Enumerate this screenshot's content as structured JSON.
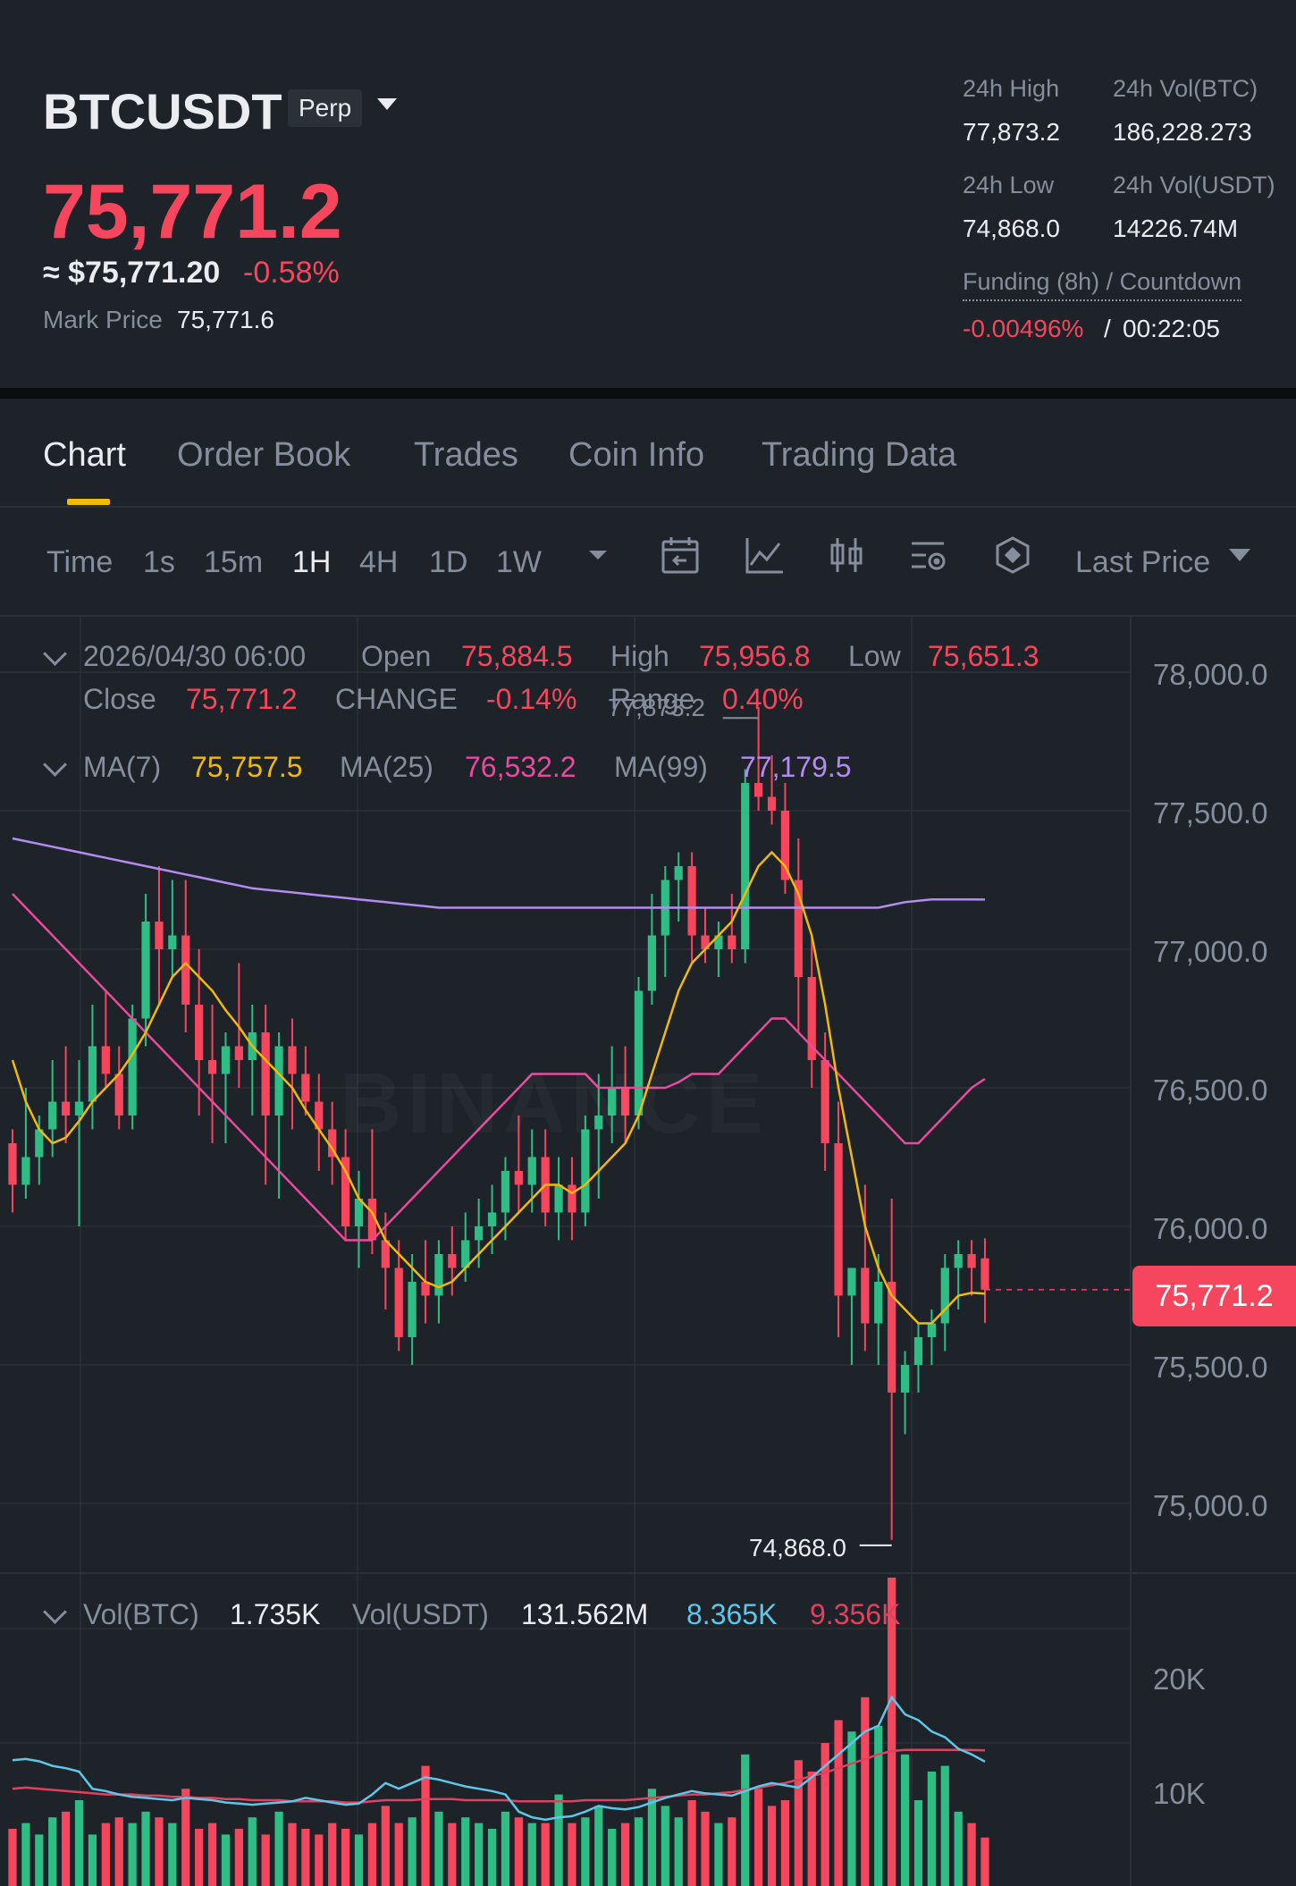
{
  "header": {
    "symbol": "BTCUSDT",
    "contract_badge": "Perp",
    "last_price": "75,771.2",
    "usd_price": "≈ $75,771.20",
    "change_pct": "-0.58%",
    "mark_price_label": "Mark Price",
    "mark_price": "75,771.6",
    "stats": {
      "high_label": "24h High",
      "high": "77,873.2",
      "vol_btc_label": "24h Vol(BTC)",
      "vol_btc": "186,228.273",
      "low_label": "24h Low",
      "low": "74,868.0",
      "vol_usdt_label": "24h Vol(USDT)",
      "vol_usdt": "14226.74M",
      "funding_label": "Funding (8h) / Countdown",
      "funding_rate": "-0.00496%",
      "funding_sep": "/",
      "countdown": "00:22:05"
    }
  },
  "tabs": [
    "Chart",
    "Order Book",
    "Trades",
    "Coin Info",
    "Trading Data"
  ],
  "active_tab": "Chart",
  "toolbar": {
    "timeframes": [
      "Time",
      "1s",
      "15m",
      "1H",
      "4H",
      "1D",
      "1W"
    ],
    "active_timeframe": "1H",
    "price_type": "Last Price",
    "icons": [
      "chevron-down-icon",
      "calendar-icon",
      "indicator-icon",
      "candle-style-icon",
      "settings-icon",
      "drawing-icon"
    ]
  },
  "ohlc": {
    "datetime": "2026/04/30 06:00",
    "open_label": "Open",
    "open": "75,884.5",
    "high_label": "High",
    "high": "75,956.8",
    "low_label": "Low",
    "low": "75,651.3",
    "close_label": "Close",
    "close": "75,771.2",
    "change_label": "CHANGE",
    "change": "-0.14%",
    "range_label": "Range",
    "range": "0.40%"
  },
  "ma": {
    "ma7_label": "MA(7)",
    "ma7": "75,757.5",
    "ma25_label": "MA(25)",
    "ma25": "76,532.2",
    "ma99_label": "MA(99)",
    "ma99": "77,179.5",
    "ma7_color": "#f0b90b",
    "ma25_color": "#e84aa0",
    "ma99_color": "#b48cf0"
  },
  "annotations": {
    "max_price": "77,873.2",
    "min_price": "74,868.0",
    "current_price_tag": "75,771.2"
  },
  "volume_legend": {
    "vol_btc_label": "Vol(BTC)",
    "vol_btc": "1.735K",
    "vol_usdt_label": "Vol(USDT)",
    "vol_usdt": "131.562M",
    "ma1": "8.365K",
    "ma2": "9.356K",
    "ma1_color": "#5ec6e8",
    "ma2_color": "#e0415f"
  },
  "watermark": "BINANCE",
  "chart_data": {
    "type": "candlestick",
    "y_axis_ticks": [
      "78,000.0",
      "77,500.0",
      "77,000.0",
      "76,500.0",
      "76,000.0",
      "75,500.0",
      "75,000.0"
    ],
    "ylim": [
      74800,
      78200
    ],
    "volume_axis_ticks": [
      "20K",
      "10K"
    ],
    "volume_ylim": [
      0,
      26000
    ],
    "colors": {
      "up": "#2ebd85",
      "down": "#f6465d"
    },
    "candles": [
      {
        "o": 76300,
        "h": 76350,
        "l": 76050,
        "c": 76150
      },
      {
        "o": 76150,
        "h": 76500,
        "l": 76100,
        "c": 76250
      },
      {
        "o": 76250,
        "h": 76400,
        "l": 76150,
        "c": 76350
      },
      {
        "o": 76350,
        "h": 76600,
        "l": 76250,
        "c": 76450
      },
      {
        "o": 76450,
        "h": 76650,
        "l": 76300,
        "c": 76400
      },
      {
        "o": 76400,
        "h": 76600,
        "l": 76000,
        "c": 76450
      },
      {
        "o": 76450,
        "h": 76800,
        "l": 76350,
        "c": 76650
      },
      {
        "o": 76650,
        "h": 76850,
        "l": 76500,
        "c": 76550
      },
      {
        "o": 76550,
        "h": 76650,
        "l": 76350,
        "c": 76400
      },
      {
        "o": 76400,
        "h": 76800,
        "l": 76350,
        "c": 76750
      },
      {
        "o": 76750,
        "h": 77200,
        "l": 76650,
        "c": 77100
      },
      {
        "o": 77100,
        "h": 77300,
        "l": 76800,
        "c": 77000
      },
      {
        "o": 77000,
        "h": 77250,
        "l": 76900,
        "c": 77050
      },
      {
        "o": 77050,
        "h": 77250,
        "l": 76700,
        "c": 76800
      },
      {
        "o": 76800,
        "h": 77000,
        "l": 76400,
        "c": 76600
      },
      {
        "o": 76600,
        "h": 76800,
        "l": 76300,
        "c": 76550
      },
      {
        "o": 76550,
        "h": 76700,
        "l": 76300,
        "c": 76650
      },
      {
        "o": 76650,
        "h": 76950,
        "l": 76500,
        "c": 76600
      },
      {
        "o": 76600,
        "h": 76800,
        "l": 76400,
        "c": 76700
      },
      {
        "o": 76700,
        "h": 76800,
        "l": 76150,
        "c": 76400
      },
      {
        "o": 76400,
        "h": 76700,
        "l": 76100,
        "c": 76650
      },
      {
        "o": 76650,
        "h": 76750,
        "l": 76350,
        "c": 76550
      },
      {
        "o": 76550,
        "h": 76650,
        "l": 76400,
        "c": 76450
      },
      {
        "o": 76450,
        "h": 76550,
        "l": 76200,
        "c": 76350
      },
      {
        "o": 76350,
        "h": 76450,
        "l": 76150,
        "c": 76250
      },
      {
        "o": 76250,
        "h": 76350,
        "l": 75950,
        "c": 76000
      },
      {
        "o": 76000,
        "h": 76200,
        "l": 75850,
        "c": 76100
      },
      {
        "o": 76100,
        "h": 76350,
        "l": 75900,
        "c": 75950
      },
      {
        "o": 75950,
        "h": 76050,
        "l": 75700,
        "c": 75850
      },
      {
        "o": 75850,
        "h": 75950,
        "l": 75550,
        "c": 75600
      },
      {
        "o": 75600,
        "h": 75900,
        "l": 75500,
        "c": 75800
      },
      {
        "o": 75800,
        "h": 75950,
        "l": 75650,
        "c": 75750
      },
      {
        "o": 75750,
        "h": 75950,
        "l": 75650,
        "c": 75900
      },
      {
        "o": 75900,
        "h": 76000,
        "l": 75750,
        "c": 75850
      },
      {
        "o": 75850,
        "h": 76050,
        "l": 75800,
        "c": 75950
      },
      {
        "o": 75950,
        "h": 76100,
        "l": 75850,
        "c": 76000
      },
      {
        "o": 76000,
        "h": 76150,
        "l": 75900,
        "c": 76050
      },
      {
        "o": 76050,
        "h": 76250,
        "l": 75950,
        "c": 76200
      },
      {
        "o": 76200,
        "h": 76400,
        "l": 76050,
        "c": 76150
      },
      {
        "o": 76150,
        "h": 76350,
        "l": 76050,
        "c": 76250
      },
      {
        "o": 76250,
        "h": 76350,
        "l": 76000,
        "c": 76050
      },
      {
        "o": 76050,
        "h": 76250,
        "l": 75950,
        "c": 76150
      },
      {
        "o": 76150,
        "h": 76250,
        "l": 75950,
        "c": 76050
      },
      {
        "o": 76050,
        "h": 76400,
        "l": 76000,
        "c": 76350
      },
      {
        "o": 76350,
        "h": 76550,
        "l": 76100,
        "c": 76400
      },
      {
        "o": 76400,
        "h": 76650,
        "l": 76300,
        "c": 76500
      },
      {
        "o": 76500,
        "h": 76650,
        "l": 76300,
        "c": 76400
      },
      {
        "o": 76400,
        "h": 76900,
        "l": 76350,
        "c": 76850
      },
      {
        "o": 76850,
        "h": 77200,
        "l": 76800,
        "c": 77050
      },
      {
        "o": 77050,
        "h": 77300,
        "l": 76900,
        "c": 77250
      },
      {
        "o": 77250,
        "h": 77350,
        "l": 77100,
        "c": 77300
      },
      {
        "o": 77300,
        "h": 77350,
        "l": 76950,
        "c": 77050
      },
      {
        "o": 77050,
        "h": 77150,
        "l": 76950,
        "c": 77000
      },
      {
        "o": 77000,
        "h": 77100,
        "l": 76900,
        "c": 77050
      },
      {
        "o": 77050,
        "h": 77200,
        "l": 76950,
        "c": 77000
      },
      {
        "o": 77000,
        "h": 77650,
        "l": 76950,
        "c": 77600
      },
      {
        "o": 77600,
        "h": 77873.2,
        "l": 77500,
        "c": 77550
      },
      {
        "o": 77550,
        "h": 77700,
        "l": 77450,
        "c": 77500
      },
      {
        "o": 77500,
        "h": 77600,
        "l": 77200,
        "c": 77250
      },
      {
        "o": 77250,
        "h": 77400,
        "l": 76700,
        "c": 76900
      },
      {
        "o": 76900,
        "h": 77050,
        "l": 76500,
        "c": 76600
      },
      {
        "o": 76600,
        "h": 76700,
        "l": 76200,
        "c": 76300
      },
      {
        "o": 76300,
        "h": 76450,
        "l": 75600,
        "c": 75750
      },
      {
        "o": 75750,
        "h": 75850,
        "l": 75500,
        "c": 75850
      },
      {
        "o": 75850,
        "h": 76150,
        "l": 75550,
        "c": 75650
      },
      {
        "o": 75650,
        "h": 75900,
        "l": 75500,
        "c": 75800
      },
      {
        "o": 75800,
        "h": 76100,
        "l": 74868,
        "c": 75400
      },
      {
        "o": 75400,
        "h": 75550,
        "l": 75250,
        "c": 75500
      },
      {
        "o": 75500,
        "h": 75650,
        "l": 75400,
        "c": 75600
      },
      {
        "o": 75600,
        "h": 75700,
        "l": 75500,
        "c": 75650
      },
      {
        "o": 75650,
        "h": 75900,
        "l": 75550,
        "c": 75850
      },
      {
        "o": 75850,
        "h": 75950,
        "l": 75700,
        "c": 75900
      },
      {
        "o": 75900,
        "h": 75950,
        "l": 75750,
        "c": 75850
      },
      {
        "o": 75884.5,
        "h": 75956.8,
        "l": 75651.3,
        "c": 75771.2
      }
    ],
    "ma7": [
      76600,
      76450,
      76350,
      76300,
      76320,
      76380,
      76450,
      76500,
      76550,
      76620,
      76700,
      76800,
      76900,
      76950,
      76900,
      76850,
      76780,
      76720,
      76650,
      76600,
      76550,
      76500,
      76420,
      76350,
      76280,
      76200,
      76100,
      76050,
      75950,
      75900,
      75850,
      75800,
      75780,
      75800,
      75850,
      75900,
      75950,
      76000,
      76050,
      76100,
      76150,
      76150,
      76120,
      76150,
      76200,
      76250,
      76300,
      76400,
      76550,
      76700,
      76850,
      76950,
      77000,
      77050,
      77100,
      77200,
      77300,
      77350,
      77300,
      77200,
      77050,
      76800,
      76500,
      76250,
      76000,
      75850,
      75750,
      75700,
      75650,
      75650,
      75700,
      75750,
      75760,
      75757.5
    ],
    "ma25": [
      77200,
      77150,
      77100,
      77050,
      77000,
      76950,
      76900,
      76850,
      76800,
      76750,
      76700,
      76650,
      76600,
      76550,
      76500,
      76450,
      76400,
      76350,
      76300,
      76250,
      76200,
      76150,
      76100,
      76050,
      76000,
      75950,
      75950,
      75950,
      76000,
      76050,
      76100,
      76150,
      76200,
      76250,
      76300,
      76350,
      76400,
      76450,
      76500,
      76550,
      76550,
      76550,
      76550,
      76550,
      76500,
      76500,
      76500,
      76500,
      76500,
      76500,
      76520,
      76550,
      76550,
      76550,
      76600,
      76650,
      76700,
      76750,
      76750,
      76700,
      76650,
      76600,
      76550,
      76500,
      76450,
      76400,
      76350,
      76300,
      76300,
      76350,
      76400,
      76450,
      76500,
      76532.2
    ],
    "ma99": [
      77400,
      77390,
      77380,
      77370,
      77360,
      77350,
      77340,
      77330,
      77320,
      77310,
      77300,
      77290,
      77280,
      77270,
      77260,
      77250,
      77240,
      77230,
      77220,
      77215,
      77210,
      77205,
      77200,
      77195,
      77190,
      77185,
      77180,
      77175,
      77170,
      77165,
      77160,
      77155,
      77150,
      77150,
      77150,
      77150,
      77150,
      77150,
      77150,
      77150,
      77150,
      77150,
      77150,
      77150,
      77150,
      77150,
      77150,
      77150,
      77150,
      77150,
      77150,
      77150,
      77150,
      77150,
      77150,
      77150,
      77150,
      77150,
      77150,
      77150,
      77150,
      77150,
      77150,
      77150,
      77150,
      77150,
      77160,
      77170,
      77175,
      77180,
      77180,
      77180,
      77180,
      77179.5
    ],
    "volumes": [
      2500,
      3000,
      2000,
      3500,
      4000,
      5000,
      2000,
      3000,
      3500,
      3000,
      4000,
      3500,
      3000,
      6000,
      2500,
      3000,
      2000,
      2500,
      3500,
      2000,
      4000,
      3000,
      2500,
      2000,
      3000,
      2500,
      2000,
      3000,
      4500,
      3000,
      3500,
      8000,
      4000,
      3000,
      3500,
      3000,
      2500,
      4000,
      3500,
      3000,
      3000,
      5500,
      3000,
      3500,
      4500,
      2500,
      3000,
      3500,
      6000,
      4500,
      3500,
      5000,
      4000,
      3000,
      3500,
      9000,
      6000,
      4500,
      5000,
      8500,
      7500,
      10000,
      12000,
      11000,
      14000,
      11500,
      25500,
      9000,
      5000,
      7500,
      8000,
      4000,
      3000,
      1735
    ],
    "vol_ma1": [
      8500,
      8600,
      8400,
      8000,
      7800,
      7500,
      6000,
      5800,
      5500,
      5300,
      5200,
      5100,
      5000,
      5200,
      5100,
      5000,
      4800,
      4700,
      4600,
      4700,
      4800,
      4900,
      5200,
      5000,
      4800,
      4600,
      4700,
      5500,
      6500,
      6000,
      6500,
      7000,
      6800,
      6500,
      6200,
      6000,
      5800,
      5500,
      4000,
      3500,
      3300,
      3500,
      3600,
      4000,
      4500,
      4300,
      4200,
      4400,
      4800,
      5200,
      5500,
      5800,
      5600,
      5500,
      5400,
      5800,
      6200,
      6500,
      6300,
      6100,
      7000,
      8000,
      9000,
      10000,
      11000,
      11500,
      14000,
      12500,
      12000,
      11000,
      10500,
      9500,
      9000,
      8365
    ],
    "vol_ma2": [
      6000,
      6100,
      6000,
      5900,
      5800,
      5700,
      5600,
      5500,
      5500,
      5500,
      5400,
      5400,
      5300,
      5300,
      5200,
      5200,
      5100,
      5100,
      5000,
      5000,
      5000,
      4900,
      4900,
      4900,
      4900,
      4800,
      4800,
      4900,
      5000,
      5000,
      5000,
      5100,
      5100,
      5100,
      5000,
      5000,
      5000,
      5000,
      4900,
      4900,
      4900,
      4900,
      4900,
      5000,
      5000,
      5000,
      5000,
      5100,
      5200,
      5300,
      5400,
      5500,
      5500,
      5600,
      5700,
      5900,
      6100,
      6300,
      6500,
      6800,
      7100,
      7400,
      7800,
      8200,
      8600,
      9000,
      9300,
      9400,
      9400,
      9400,
      9400,
      9400,
      9380,
      9356
    ]
  }
}
